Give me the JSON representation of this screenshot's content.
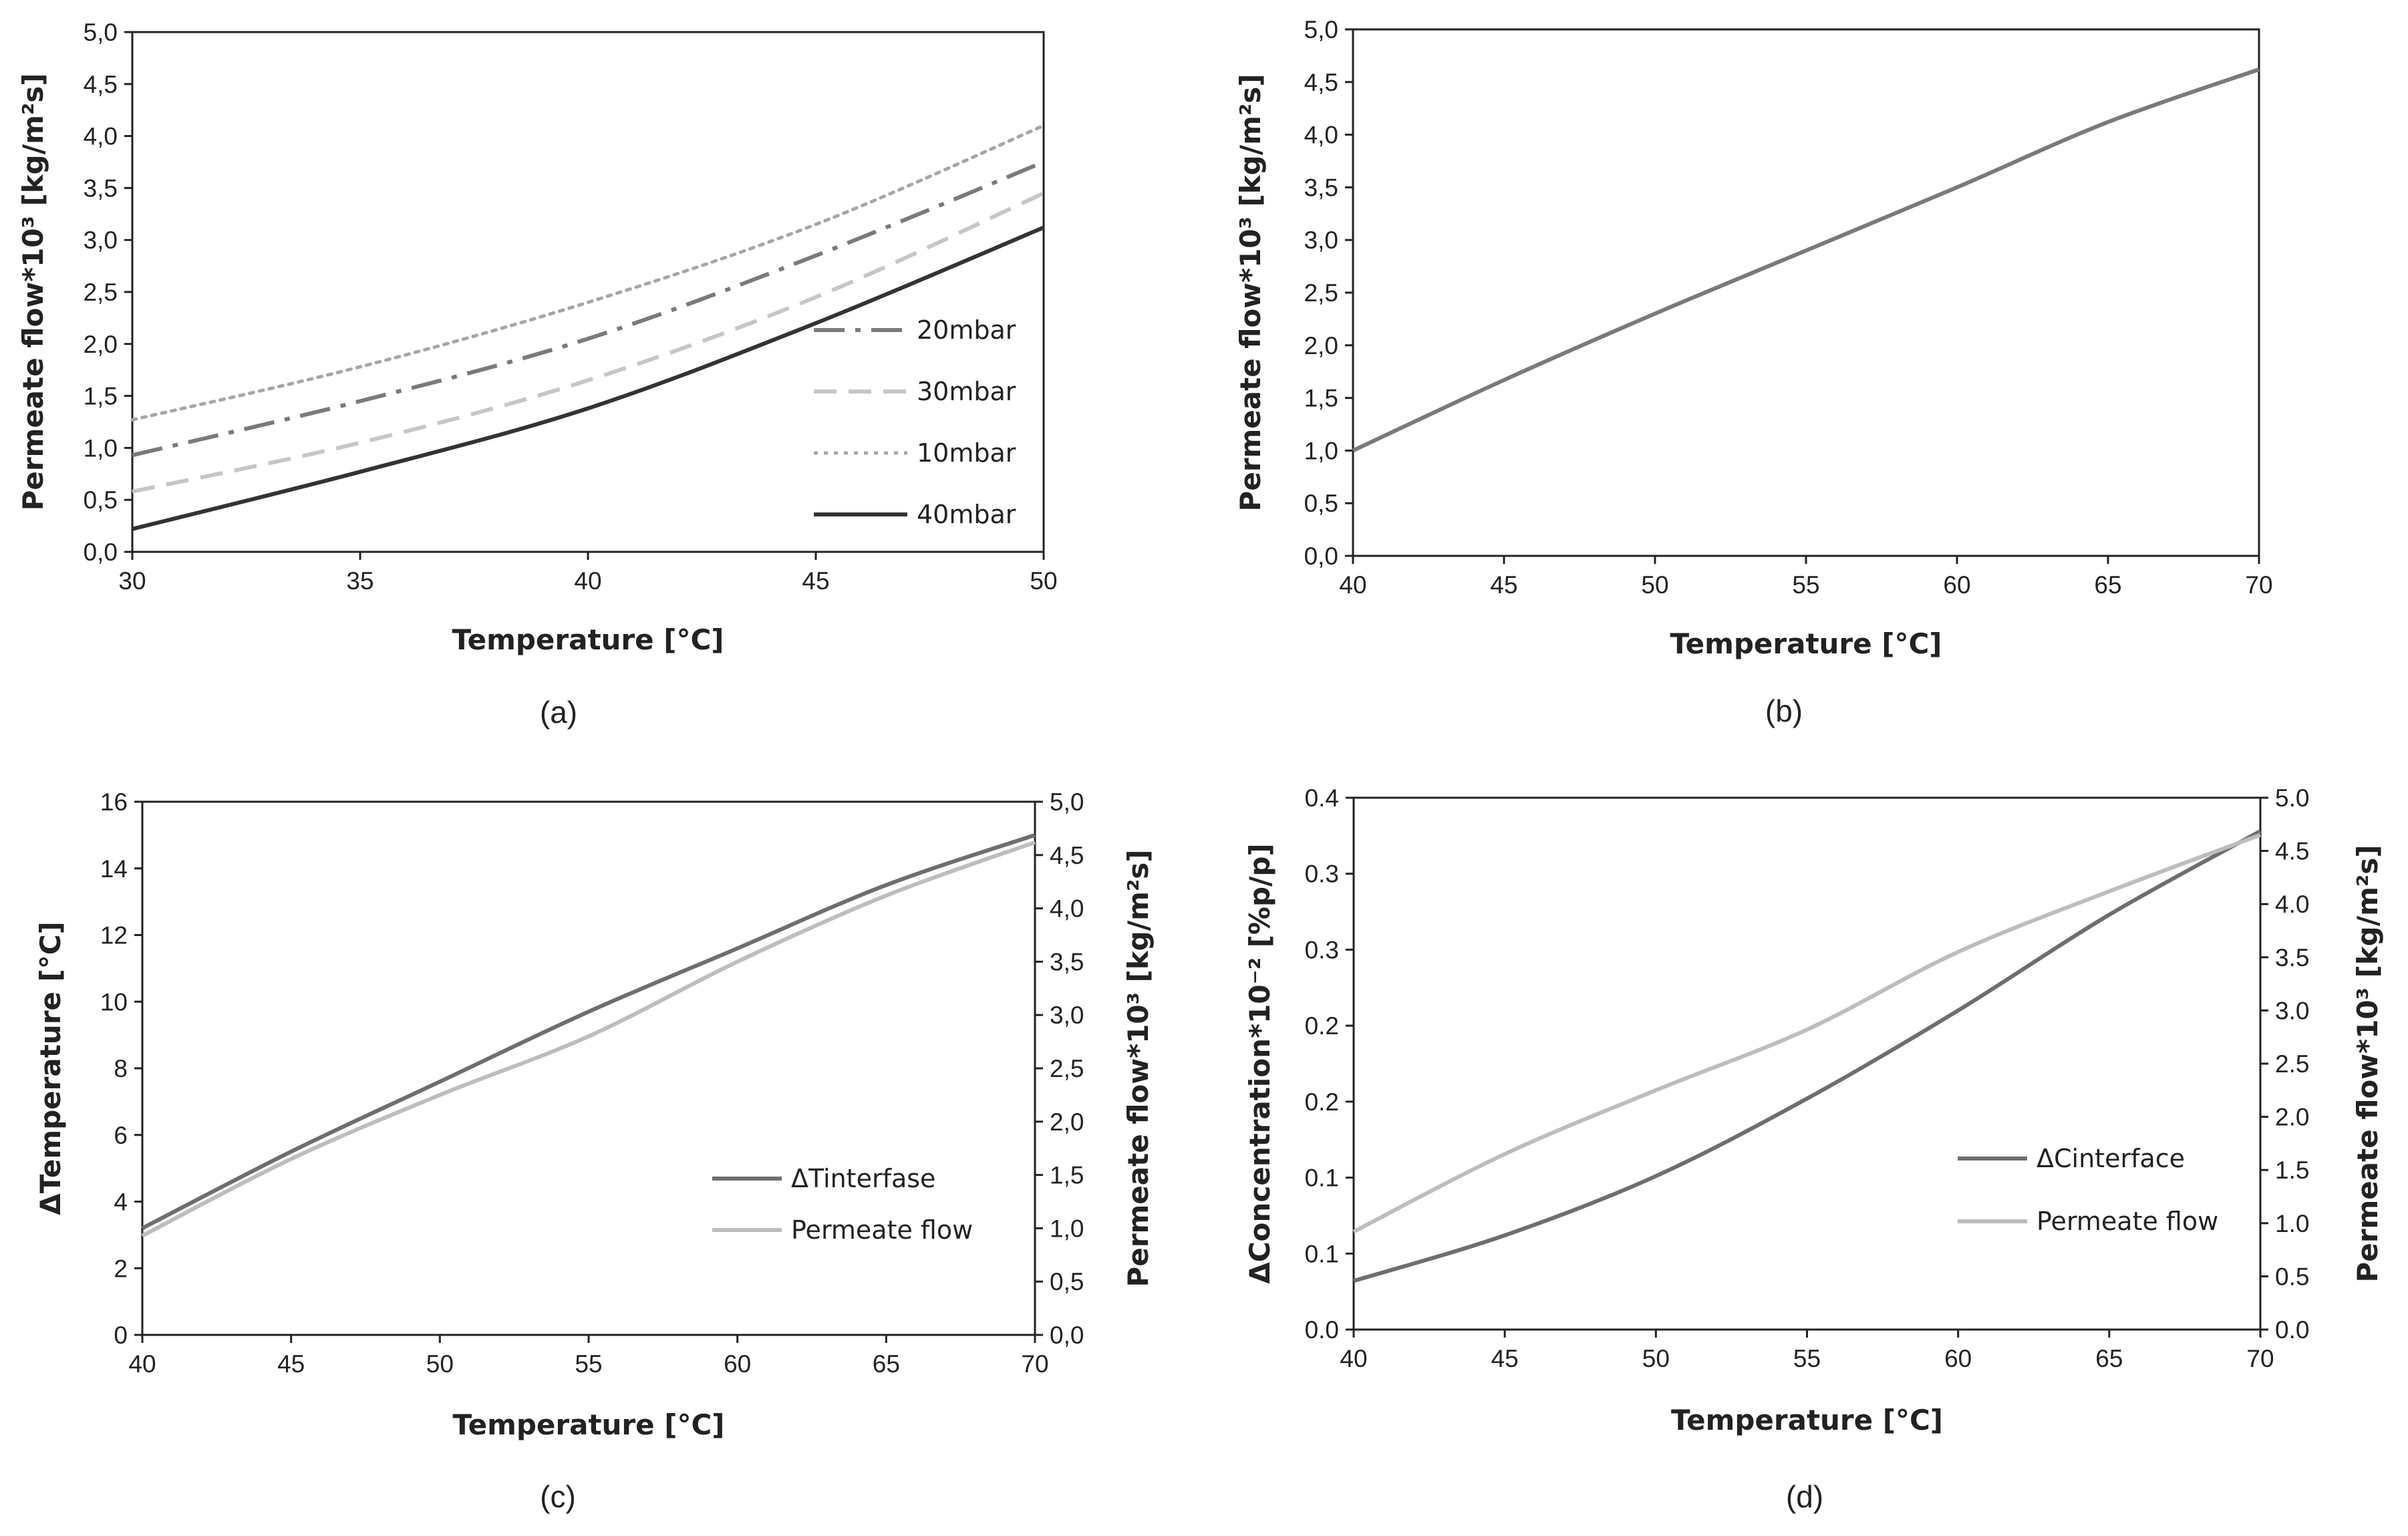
{
  "chart_data": [
    {
      "id": "a",
      "type": "line",
      "caption": "(a)",
      "xlabel": "Temperature [°C]",
      "ylabel": "Permeate flow*10³ [kg/m²s]",
      "xlim": [
        30,
        50
      ],
      "xticks": [
        30,
        35,
        40,
        45,
        50
      ],
      "ylim": [
        0,
        5
      ],
      "yticks": [
        0,
        0.5,
        1,
        1.5,
        2,
        2.5,
        3,
        3.5,
        4,
        4.5,
        5
      ],
      "ytick_labels": [
        "0,0",
        "0,5",
        "1,0",
        "1,5",
        "2,0",
        "2,5",
        "3,0",
        "3,5",
        "4,0",
        "4,5",
        "5,0"
      ],
      "legend_position": "center-right",
      "series": [
        {
          "name": "20mbar",
          "style": "dashdot",
          "color": "#7a7a7a",
          "x": [
            30,
            35,
            40,
            45,
            50
          ],
          "y": [
            0.93,
            1.45,
            2.05,
            2.85,
            3.75
          ]
        },
        {
          "name": "30mbar",
          "style": "dashed",
          "color": "#c6c6c6",
          "x": [
            30,
            35,
            40,
            45,
            50
          ],
          "y": [
            0.58,
            1.05,
            1.65,
            2.45,
            3.45
          ]
        },
        {
          "name": "10mbar",
          "style": "dotted",
          "color": "#a6a6a6",
          "x": [
            30,
            35,
            40,
            45,
            50
          ],
          "y": [
            1.27,
            1.78,
            2.4,
            3.15,
            4.1
          ]
        },
        {
          "name": "40mbar",
          "style": "solid",
          "color": "#333333",
          "x": [
            30,
            35,
            40,
            45,
            50
          ],
          "y": [
            0.22,
            0.77,
            1.38,
            2.2,
            3.12
          ]
        }
      ]
    },
    {
      "id": "b",
      "type": "line",
      "caption": "(b)",
      "xlabel": "Temperature [°C]",
      "ylabel": "Permeate flow*10³ [kg/m²s]",
      "xlim": [
        40,
        70
      ],
      "xticks": [
        40,
        45,
        50,
        55,
        60,
        65,
        70
      ],
      "ylim": [
        0,
        5
      ],
      "yticks": [
        0,
        0.5,
        1,
        1.5,
        2,
        2.5,
        3,
        3.5,
        4,
        4.5,
        5
      ],
      "ytick_labels": [
        "0,0",
        "0,5",
        "1,0",
        "1,5",
        "2,0",
        "2,5",
        "3,0",
        "3,5",
        "4,0",
        "4,5",
        "5,0"
      ],
      "series": [
        {
          "name": "Permeate flow",
          "style": "solid",
          "color": "#7a7a7a",
          "x": [
            40,
            45,
            50,
            55,
            60,
            65,
            70
          ],
          "y": [
            1.0,
            1.67,
            2.3,
            2.9,
            3.5,
            4.12,
            4.62
          ]
        }
      ]
    },
    {
      "id": "c",
      "type": "line",
      "caption": "(c)",
      "xlabel": "Temperature [°C]",
      "ylabel": "ΔTemperature [°C]",
      "ylabel_right": "Permeate flow*10³ [kg/m²s]",
      "xlim": [
        40,
        70
      ],
      "xticks": [
        40,
        45,
        50,
        55,
        60,
        65,
        70
      ],
      "ylim": [
        0,
        16
      ],
      "yticks": [
        0,
        2,
        4,
        6,
        8,
        10,
        12,
        14,
        16
      ],
      "ytick_labels": [
        "0",
        "2",
        "4",
        "6",
        "8",
        "10",
        "12",
        "14",
        "16"
      ],
      "ylim_right": [
        0,
        5
      ],
      "yticks_right": [
        0,
        0.5,
        1,
        1.5,
        2,
        2.5,
        3,
        3.5,
        4,
        4.5,
        5
      ],
      "ytick_labels_right": [
        "0,0",
        "0,5",
        "1,0",
        "1,5",
        "2,0",
        "2,5",
        "3,0",
        "3,5",
        "4,0",
        "4,5",
        "5,0"
      ],
      "legend_position": "lower-right",
      "series": [
        {
          "name": "ΔTinterfase",
          "axis": "left",
          "style": "solid",
          "color": "#6e6e6e",
          "x": [
            40,
            45,
            50,
            55,
            60,
            65,
            70
          ],
          "y": [
            3.2,
            5.5,
            7.6,
            9.7,
            11.6,
            13.5,
            15.0
          ]
        },
        {
          "name": "Permeate flow",
          "axis": "right",
          "style": "solid",
          "color": "#bdbdbd",
          "x": [
            40,
            45,
            50,
            55,
            60,
            65,
            70
          ],
          "y": [
            0.93,
            1.65,
            2.25,
            2.8,
            3.5,
            4.12,
            4.62
          ]
        }
      ]
    },
    {
      "id": "d",
      "type": "line",
      "caption": "(d)",
      "xlabel": "Temperature [°C]",
      "ylabel": "ΔConcentration*10⁻² [%p/p]",
      "ylabel_right": "Permeate flow*10³ [kg/m²s]",
      "xlim": [
        40,
        70
      ],
      "xticks": [
        40,
        45,
        50,
        55,
        60,
        65,
        70
      ],
      "ylim": [
        0,
        0.35
      ],
      "yticks": [
        0,
        0.05,
        0.1,
        0.15,
        0.2,
        0.25,
        0.3,
        0.35
      ],
      "ytick_labels": [
        "0.0",
        "0.1",
        "0.1",
        "0.2",
        "0.2",
        "0.3",
        "0.3",
        "0.4"
      ],
      "ylim_right": [
        0,
        5
      ],
      "yticks_right": [
        0,
        0.5,
        1,
        1.5,
        2,
        2.5,
        3,
        3.5,
        4,
        4.5,
        5
      ],
      "ytick_labels_right": [
        "0.0",
        "0.5",
        "1.0",
        "1.5",
        "2.0",
        "2.5",
        "3.0",
        "3.5",
        "4.0",
        "4.5",
        "5.0"
      ],
      "legend_position": "lower-right",
      "series": [
        {
          "name": "ΔCinterface",
          "axis": "left",
          "style": "solid",
          "color": "#6e6e6e",
          "x": [
            40,
            45,
            50,
            55,
            60,
            65,
            70
          ],
          "y": [
            0.032,
            0.062,
            0.101,
            0.152,
            0.21,
            0.273,
            0.328
          ]
        },
        {
          "name": "Permeate flow",
          "axis": "right",
          "style": "solid",
          "color": "#bdbdbd",
          "x": [
            40,
            45,
            50,
            55,
            60,
            65,
            70
          ],
          "y": [
            0.92,
            1.65,
            2.25,
            2.82,
            3.55,
            4.12,
            4.65
          ]
        }
      ]
    }
  ]
}
